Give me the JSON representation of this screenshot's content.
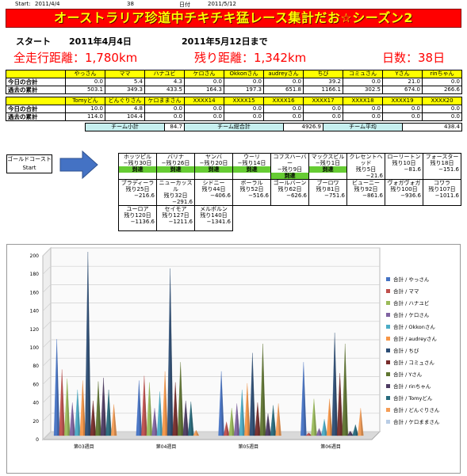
{
  "top_info": {
    "start_label": "Start:",
    "start_date": "2011/4/4",
    "days_count": "38",
    "date_label": "日付",
    "date_value": "2011/5/12"
  },
  "banner": {
    "title": "オーストラリア珍道中チキチキ猛レース集計だお☆シーズン2"
  },
  "start_section": {
    "start_label": "スタート",
    "start_date": "2011年4月4日",
    "until_label": "2011年5月12日まで"
  },
  "distances": {
    "total_label": "全走行距離：1,780km",
    "remaining_label": "残り距離：1,342km",
    "days_label": "日数：38日"
  },
  "table1": {
    "names": [
      "やっさん",
      "ママ",
      "ハナユビ",
      "ケロさん",
      "Okkonさん",
      "audreyさん",
      "ちび",
      "コミュさん",
      "Yさん",
      "rinちゃん"
    ],
    "today_label": "今日の合計",
    "today": [
      "0.0",
      "5.4",
      "4.3",
      "0.0",
      "0.0",
      "0.0",
      "39.2",
      "0.0",
      "21.0",
      "0.0"
    ],
    "past_label": "過去の累計",
    "past": [
      "503.1",
      "349.3",
      "433.5",
      "164.3",
      "197.3",
      "651.8",
      "1166.1",
      "302.5",
      "674.0",
      "266.6"
    ]
  },
  "table2": {
    "names": [
      "Tomyどん",
      "どんぐりさん",
      "ケロままさん",
      "XXXX14",
      "XXXX15",
      "XXXX16",
      "XXXX17",
      "XXXX18",
      "XXXX19",
      "XXXX20"
    ],
    "today_label": "今日の合計",
    "today": [
      "10.0",
      "4.8",
      "0.0",
      "0.0",
      "0.0",
      "0.0",
      "0.0",
      "0.0",
      "0.0",
      "0.0"
    ],
    "past_label": "過去の累計",
    "past": [
      "114.0",
      "104.4",
      "0.0",
      "0.0",
      "0.0",
      "0.0",
      "0.0",
      "0.0",
      "0.0",
      "0.0"
    ]
  },
  "summary": {
    "team_subtotal_label": "チーム小計",
    "team_subtotal": "84.7",
    "team_total_label": "チーム総合計",
    "team_total": "4926.9",
    "team_avg_label": "チーム平均",
    "team_avg": "438.4"
  },
  "course": {
    "start_box_line1": "ゴールドコースト",
    "start_box_line2": "Start",
    "arrived_label": "到達",
    "rows": [
      [
        {
          "name": "ホッツピル",
          "remain": "−残り30日",
          "dist": "",
          "arrived": true
        },
        {
          "name": "バリナ",
          "remain": "−残り26日",
          "dist": "",
          "arrived": true
        },
        {
          "name": "ヤンバ",
          "remain": "−残り20日",
          "dist": "",
          "arrived": true
        },
        {
          "name": "ウーリ",
          "remain": "−残り14日",
          "dist": "",
          "arrived": true
        },
        {
          "name": "コフスハーバー",
          "remain": "−残り9日",
          "dist": "",
          "arrived": true
        },
        {
          "name": "マックスビル",
          "remain": "−残り1日",
          "dist": "",
          "arrived": true
        },
        {
          "name": "クレセントヘッド",
          "remain": "残り5日",
          "dist": "−21.6",
          "arrived": false
        },
        {
          "name": "ローリートン",
          "remain": "残り10日",
          "dist": "−81.6",
          "arrived": false
        },
        {
          "name": "フォースター",
          "remain": "残り18日",
          "dist": "−151.6",
          "arrived": false
        }
      ],
      [
        {
          "name": "ブラディーラ",
          "remain": "残り25日",
          "dist": "−216.6",
          "arrived": false
        },
        {
          "name": "ニューカッスル",
          "remain": "残り32日",
          "dist": "−291.6",
          "arrived": false
        },
        {
          "name": "シドニー",
          "remain": "残り44日",
          "dist": "−406.6",
          "arrived": false
        },
        {
          "name": "ボーラル",
          "remain": "残り52日",
          "dist": "−516.6",
          "arrived": false
        },
        {
          "name": "ゴールバーン",
          "remain": "残り62日",
          "dist": "−626.6",
          "arrived": false
        },
        {
          "name": "ブーロワ",
          "remain": "残り81日",
          "dist": "−751.6",
          "arrived": false
        },
        {
          "name": "ビューニー",
          "remain": "残り92日",
          "dist": "−861.6",
          "arrived": false
        },
        {
          "name": "ヴォガヴォガ",
          "remain": "残り100日",
          "dist": "−936.6",
          "arrived": false
        },
        {
          "name": "コワラ",
          "remain": "残り107日",
          "dist": "−1011.6",
          "arrived": false
        }
      ],
      [
        {
          "name": "ユーロア",
          "remain": "残り120日",
          "dist": "−1136.6",
          "arrived": false
        },
        {
          "name": "セイモア",
          "remain": "残り127日",
          "dist": "−1211.6",
          "arrived": false
        },
        {
          "name": "メルボルン",
          "remain": "残り140日",
          "dist": "−1341.6",
          "arrived": false
        }
      ]
    ]
  },
  "chart_data": {
    "type": "bar",
    "subtype": "3d-cone-clustered",
    "categories": [
      "第03週目",
      "第04週目",
      "第05週目",
      "第06週目"
    ],
    "ylim": [
      0,
      200
    ],
    "yticks": [
      0,
      20,
      40,
      60,
      80,
      100,
      120,
      140,
      160,
      180,
      200
    ],
    "grid": true,
    "legend_position": "right",
    "series": [
      {
        "name": "合計 / やっさん",
        "color": "#4472c4",
        "values": [
          105,
          60,
          70,
          80
        ]
      },
      {
        "name": "合計 / ママ",
        "color": "#c0504d",
        "values": [
          72,
          65,
          15,
          3
        ]
      },
      {
        "name": "合計 / ハナユビ",
        "color": "#9bbb59",
        "values": [
          62,
          58,
          30,
          40
        ]
      },
      {
        "name": "合計 / ケロさん",
        "color": "#8064a2",
        "values": [
          36,
          30,
          35,
          8
        ]
      },
      {
        "name": "合計 / Okkonさん",
        "color": "#4bacc6",
        "values": [
          50,
          48,
          50,
          18
        ]
      },
      {
        "name": "合計 / audreyさん",
        "color": "#f79646",
        "values": [
          60,
          70,
          57,
          40
        ]
      },
      {
        "name": "合計 / ちび",
        "color": "#2c4d75",
        "values": [
          200,
          182,
          90,
          112
        ]
      },
      {
        "name": "合計 / コミュさん",
        "color": "#772c2a",
        "values": [
          38,
          58,
          36,
          68
        ]
      },
      {
        "name": "合計 / Yさん",
        "color": "#5f7530",
        "values": [
          59,
          80,
          100,
          100
        ]
      },
      {
        "name": "合計 / rinちゃん",
        "color": "#4d3b62",
        "values": [
          63,
          38,
          24,
          5
        ]
      },
      {
        "name": "合計 / Tomyどん",
        "color": "#276a7c",
        "values": [
          50,
          37,
          33,
          12
        ]
      },
      {
        "name": "合計 / どんぐりさん",
        "color": "#f59d56",
        "values": [
          34,
          6,
          35,
          30
        ]
      },
      {
        "name": "合計 / ケロままさん",
        "color": "#b9cde5",
        "values": [
          0,
          0,
          0,
          0
        ]
      }
    ]
  }
}
